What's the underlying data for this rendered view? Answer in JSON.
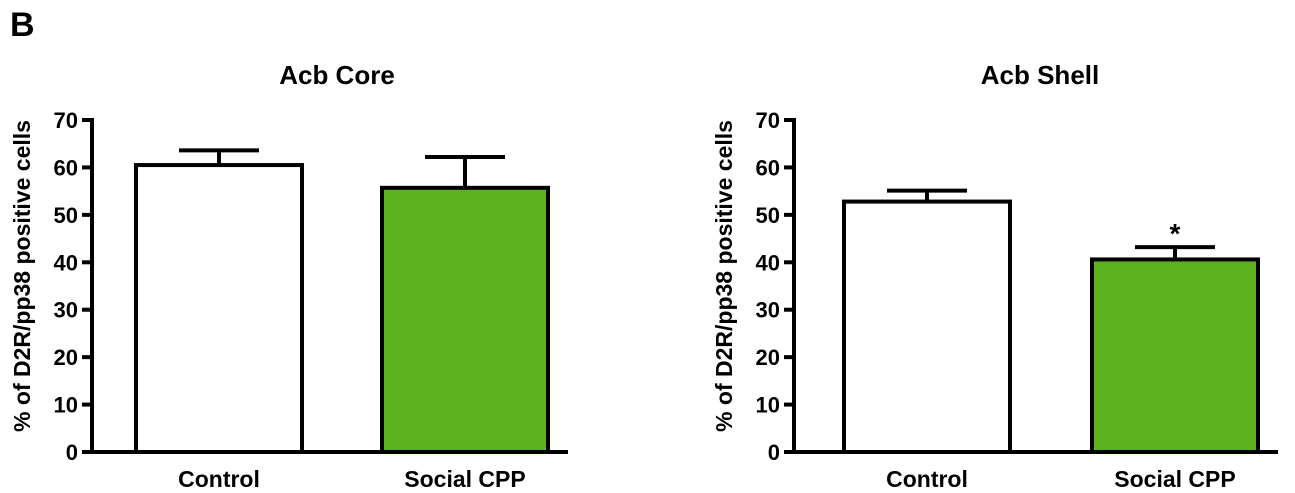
{
  "figure": {
    "panel_label": "B"
  },
  "chart_data": [
    {
      "type": "bar",
      "title": "Acb Core",
      "xlabel": "",
      "ylabel": "% of D2R/pp38 positive cells",
      "ylim": [
        0,
        70
      ],
      "yticks": [
        0,
        10,
        20,
        30,
        40,
        50,
        60,
        70
      ],
      "categories": [
        "Control",
        "Social CPP"
      ],
      "values": [
        60.5,
        55.7
      ],
      "errors": [
        3.1,
        6.5
      ],
      "bar_colors": [
        "#ffffff",
        "#5cb31f"
      ],
      "annotations": [
        "",
        ""
      ],
      "grid": false
    },
    {
      "type": "bar",
      "title": "Acb Shell",
      "xlabel": "",
      "ylabel": "% of D2R/pp38 positive cells",
      "ylim": [
        0,
        70
      ],
      "yticks": [
        0,
        10,
        20,
        30,
        40,
        50,
        60,
        70
      ],
      "categories": [
        "Control",
        "Social CPP"
      ],
      "values": [
        52.8,
        40.6
      ],
      "errors": [
        2.3,
        2.6
      ],
      "bar_colors": [
        "#ffffff",
        "#5cb31f"
      ],
      "annotations": [
        "",
        "*"
      ],
      "grid": false
    }
  ]
}
